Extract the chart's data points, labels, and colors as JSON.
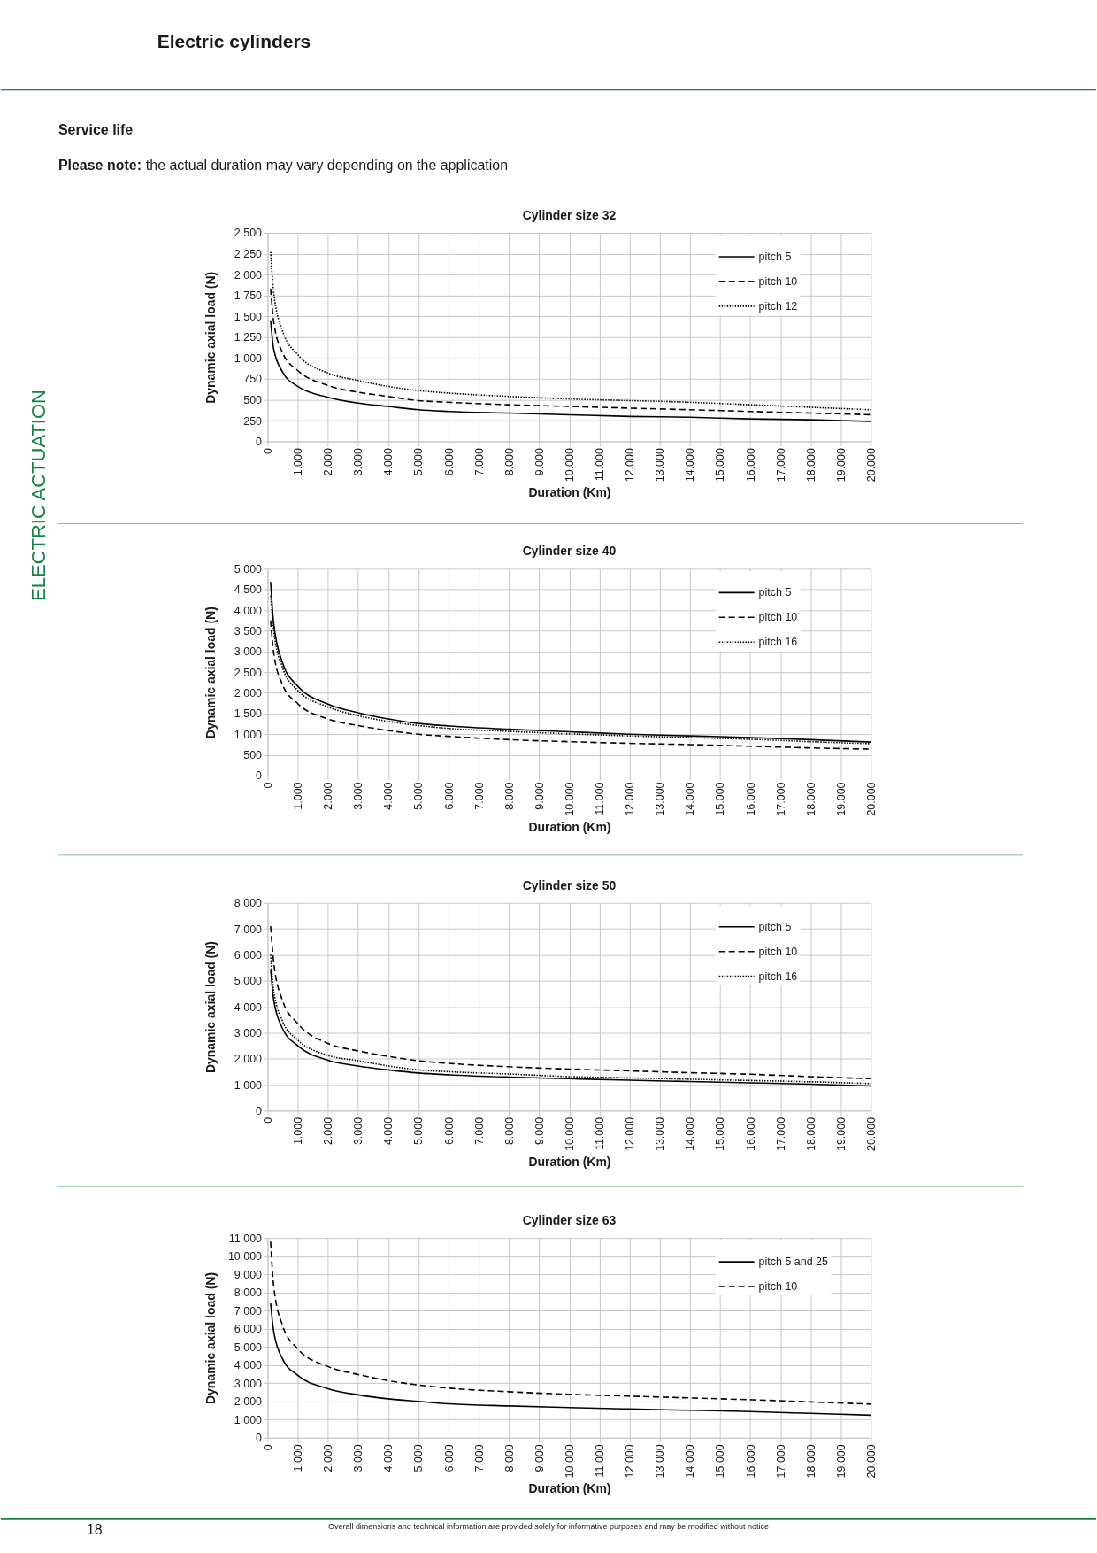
{
  "chart_data": [
    {
      "type": "line",
      "title": "Cylinder size 32",
      "xlabel": "Duration (Km)",
      "ylabel": "Dynamic axial load (N)",
      "annotations": [
        "Electric cylinders",
        "Service life",
        "Please note:",
        "the actual duration may vary depending on the application",
        "ELECTRIC ACTUATION"
      ],
      "x": [
        100,
        200,
        500,
        1000,
        2000,
        3000,
        4000,
        5000,
        6000,
        8000,
        10000,
        12000,
        14000,
        16000,
        18000,
        20000
      ],
      "series": [
        {
          "name": "pitch 5",
          "color": "#000000",
          "line_style": "solid",
          "values": [
            1450,
            1110,
            830,
            660,
            530,
            460,
            420,
            380,
            360,
            340,
            320,
            300,
            290,
            270,
            260,
            240
          ]
        },
        {
          "name": "pitch 10",
          "color": "#000000",
          "line_style": "dashed",
          "values": [
            1830,
            1440,
            1060,
            850,
            670,
            590,
            540,
            490,
            470,
            440,
            420,
            400,
            380,
            360,
            340,
            320
          ]
        },
        {
          "name": "pitch 12",
          "color": "#000000",
          "line_style": "dotted",
          "values": [
            2270,
            1790,
            1320,
            1040,
            820,
            730,
            660,
            610,
            580,
            540,
            510,
            490,
            470,
            440,
            410,
            380
          ]
        }
      ],
      "xlim": [
        0,
        20000
      ],
      "ylim": [
        0,
        2500
      ],
      "xticks": [
        0,
        {
          "value": 1000,
          "label": "1.000"
        },
        {
          "value": 2000,
          "label": "2.000"
        },
        {
          "value": 3000,
          "label": "3.000"
        },
        {
          "value": 4000,
          "label": "4.000"
        },
        {
          "value": 5000,
          "label": "5.000"
        },
        {
          "value": 6000,
          "label": "6.000"
        },
        {
          "value": 7000,
          "label": "7.000"
        },
        {
          "value": 8000,
          "label": "8.000"
        },
        {
          "value": 9000,
          "label": "9.000"
        },
        {
          "value": 10000,
          "label": "10.000"
        },
        {
          "value": 11000,
          "label": "11.000"
        },
        {
          "value": 12000,
          "label": "12.000"
        },
        {
          "value": 13000,
          "label": "13.000"
        },
        {
          "value": 14000,
          "label": "14.000"
        },
        {
          "value": 15000,
          "label": "15.000"
        },
        {
          "value": 16000,
          "label": "16.000"
        },
        {
          "value": 17000,
          "label": "17.000"
        },
        {
          "value": 18000,
          "label": "18.000"
        },
        {
          "value": 19000,
          "label": "19.000"
        },
        {
          "value": 20000,
          "label": "20.000"
        }
      ],
      "yticks": [
        0,
        250,
        500,
        750,
        {
          "value": 1000,
          "label": "1.000"
        },
        {
          "value": 1250,
          "label": "1.250"
        },
        {
          "value": 1500,
          "label": "1.500"
        },
        {
          "value": 1750,
          "label": "1.750"
        },
        {
          "value": 2000,
          "label": "2.000"
        },
        {
          "value": 2250,
          "label": "2.250"
        },
        {
          "value": 2500,
          "label": "2.500"
        }
      ],
      "grid": true,
      "legend": "top right"
    },
    {
      "type": "line",
      "title": "Cylinder size 40",
      "xlabel": "Duration (Km)",
      "ylabel": "Dynamic axial load (N)",
      "x": [
        100,
        200,
        500,
        1000,
        2000,
        3000,
        4000,
        5000,
        6000,
        8000,
        10000,
        12000,
        14000,
        16000,
        18000,
        20000
      ],
      "series": [
        {
          "name": "pitch 5",
          "color": "#000000",
          "line_style": "solid",
          "values": [
            4680,
            3690,
            2720,
            2160,
            1730,
            1520,
            1370,
            1260,
            1200,
            1120,
            1060,
            1000,
            960,
            920,
            870,
            810
          ]
        },
        {
          "name": "pitch 10",
          "color": "#000000",
          "line_style": "dashed",
          "values": [
            3750,
            2980,
            2190,
            1740,
            1370,
            1210,
            1090,
            1000,
            950,
            870,
            820,
            780,
            750,
            710,
            670,
            640
          ]
        },
        {
          "name": "pitch 16",
          "color": "#000000",
          "line_style": "dotted",
          "values": [
            4350,
            3530,
            2600,
            2060,
            1660,
            1450,
            1310,
            1210,
            1140,
            1070,
            1010,
            960,
            920,
            880,
            820,
            770
          ]
        }
      ],
      "xlim": [
        0,
        20000
      ],
      "ylim": [
        0,
        5000
      ],
      "xticks": [
        0,
        {
          "value": 1000,
          "label": "1.000"
        },
        {
          "value": 2000,
          "label": "2.000"
        },
        {
          "value": 3000,
          "label": "3.000"
        },
        {
          "value": 4000,
          "label": "4.000"
        },
        {
          "value": 5000,
          "label": "5.000"
        },
        {
          "value": 6000,
          "label": "6.000"
        },
        {
          "value": 7000,
          "label": "7.000"
        },
        {
          "value": 8000,
          "label": "8.000"
        },
        {
          "value": 9000,
          "label": "9.000"
        },
        {
          "value": 10000,
          "label": "10.000"
        },
        {
          "value": 11000,
          "label": "11.000"
        },
        {
          "value": 12000,
          "label": "12.000"
        },
        {
          "value": 13000,
          "label": "13.000"
        },
        {
          "value": 14000,
          "label": "14.000"
        },
        {
          "value": 15000,
          "label": "15.000"
        },
        {
          "value": 16000,
          "label": "16.000"
        },
        {
          "value": 17000,
          "label": "17.000"
        },
        {
          "value": 18000,
          "label": "18.000"
        },
        {
          "value": 19000,
          "label": "19.000"
        },
        {
          "value": 20000,
          "label": "20.000"
        }
      ],
      "yticks": [
        0,
        500,
        {
          "value": 1000,
          "label": "1.000"
        },
        {
          "value": 1500,
          "label": "1.500"
        },
        {
          "value": 2000,
          "label": "2.000"
        },
        {
          "value": 2500,
          "label": "2.500"
        },
        {
          "value": 3000,
          "label": "3.000"
        },
        {
          "value": 3500,
          "label": "3.500"
        },
        {
          "value": 4000,
          "label": "4.000"
        },
        {
          "value": 4500,
          "label": "4.500"
        },
        {
          "value": 5000,
          "label": "5.000"
        }
      ],
      "grid": true,
      "legend": "top right"
    },
    {
      "type": "line",
      "title": "Cylinder size 50",
      "xlabel": "Duration (Km)",
      "ylabel": "Dynamic axial load (N)",
      "x": [
        100,
        200,
        500,
        1000,
        2000,
        3000,
        4000,
        5000,
        6000,
        8000,
        10000,
        12000,
        14000,
        16000,
        18000,
        20000
      ],
      "series": [
        {
          "name": "pitch 5",
          "color": "#000000",
          "line_style": "solid",
          "values": [
            5450,
            4280,
            3150,
            2500,
            1940,
            1720,
            1570,
            1450,
            1380,
            1290,
            1230,
            1170,
            1120,
            1070,
            1020,
            950
          ]
        },
        {
          "name": "pitch 10",
          "color": "#000000",
          "line_style": "dashed",
          "values": [
            7100,
            5730,
            4220,
            3350,
            2590,
            2300,
            2090,
            1920,
            1820,
            1690,
            1600,
            1530,
            1460,
            1400,
            1310,
            1230
          ]
        },
        {
          "name": "pitch 16",
          "color": "#000000",
          "line_style": "dotted",
          "values": [
            6000,
            4650,
            3430,
            2720,
            2130,
            1920,
            1720,
            1570,
            1500,
            1410,
            1310,
            1260,
            1210,
            1160,
            1110,
            1040
          ]
        }
      ],
      "xlim": [
        0,
        20000
      ],
      "ylim": [
        0,
        8000
      ],
      "xticks": [
        0,
        {
          "value": 1000,
          "label": "1.000"
        },
        {
          "value": 2000,
          "label": "2.000"
        },
        {
          "value": 3000,
          "label": "3.000"
        },
        {
          "value": 4000,
          "label": "4.000"
        },
        {
          "value": 5000,
          "label": "5.000"
        },
        {
          "value": 6000,
          "label": "6.000"
        },
        {
          "value": 7000,
          "label": "7.000"
        },
        {
          "value": 8000,
          "label": "8.000"
        },
        {
          "value": 9000,
          "label": "9.000"
        },
        {
          "value": 10000,
          "label": "10.000"
        },
        {
          "value": 11000,
          "label": "11.000"
        },
        {
          "value": 12000,
          "label": "12.000"
        },
        {
          "value": 13000,
          "label": "13.000"
        },
        {
          "value": 14000,
          "label": "14.000"
        },
        {
          "value": 15000,
          "label": "15.000"
        },
        {
          "value": 16000,
          "label": "16.000"
        },
        {
          "value": 17000,
          "label": "17.000"
        },
        {
          "value": 18000,
          "label": "18.000"
        },
        {
          "value": 19000,
          "label": "19.000"
        },
        {
          "value": 20000,
          "label": "20.000"
        }
      ],
      "yticks": [
        0,
        {
          "value": 1000,
          "label": "1.000"
        },
        {
          "value": 2000,
          "label": "2.000"
        },
        {
          "value": 3000,
          "label": "3.000"
        },
        {
          "value": 4000,
          "label": "4.000"
        },
        {
          "value": 5000,
          "label": "5.000"
        },
        {
          "value": 6000,
          "label": "6.000"
        },
        {
          "value": 7000,
          "label": "7.000"
        },
        {
          "value": 8000,
          "label": "8.000"
        }
      ],
      "grid": true,
      "legend": "top right"
    },
    {
      "type": "line",
      "title": "Cylinder size 63",
      "xlabel": "Duration (Km)",
      "ylabel": "Dynamic axial load (N)",
      "annotations": [
        "18",
        "Overall dimensions and technical information are provided solely for informative purposes and may be modified without notice"
      ],
      "x": [
        100,
        200,
        500,
        1000,
        2000,
        3000,
        4000,
        5000,
        6000,
        8000,
        10000,
        12000,
        14000,
        16000,
        18000,
        20000
      ],
      "series": [
        {
          "name": "pitch 5 and 25",
          "color": "#000000",
          "line_style": "solid",
          "values": [
            7400,
            5870,
            4320,
            3430,
            2700,
            2360,
            2140,
            2000,
            1870,
            1750,
            1660,
            1580,
            1510,
            1440,
            1340,
            1240
          ]
        },
        {
          "name": "pitch 10",
          "color": "#000000",
          "line_style": "dashed",
          "values": [
            10800,
            8370,
            6160,
            4890,
            3920,
            3480,
            3140,
            2900,
            2730,
            2530,
            2390,
            2290,
            2190,
            2090,
            1970,
            1850
          ]
        }
      ],
      "xlim": [
        0,
        20000
      ],
      "ylim": [
        0,
        11000
      ],
      "xticks": [
        0,
        {
          "value": 1000,
          "label": "1.000"
        },
        {
          "value": 2000,
          "label": "2.000"
        },
        {
          "value": 3000,
          "label": "3.000"
        },
        {
          "value": 4000,
          "label": "4.000"
        },
        {
          "value": 5000,
          "label": "5.000"
        },
        {
          "value": 6000,
          "label": "6.000"
        },
        {
          "value": 7000,
          "label": "7.000"
        },
        {
          "value": 8000,
          "label": "8.000"
        },
        {
          "value": 9000,
          "label": "9.000"
        },
        {
          "value": 10000,
          "label": "10.000"
        },
        {
          "value": 11000,
          "label": "11.000"
        },
        {
          "value": 12000,
          "label": "12.000"
        },
        {
          "value": 13000,
          "label": "13.000"
        },
        {
          "value": 14000,
          "label": "14.000"
        },
        {
          "value": 15000,
          "label": "15.000"
        },
        {
          "value": 16000,
          "label": "16.000"
        },
        {
          "value": 17000,
          "label": "17.000"
        },
        {
          "value": 18000,
          "label": "18.000"
        },
        {
          "value": 19000,
          "label": "19.000"
        },
        {
          "value": 20000,
          "label": "20.000"
        }
      ],
      "yticks": [
        0,
        {
          "value": 1000,
          "label": "1.000"
        },
        {
          "value": 2000,
          "label": "2.000"
        },
        {
          "value": 3000,
          "label": "3.000"
        },
        {
          "value": 4000,
          "label": "4.000"
        },
        {
          "value": 5000,
          "label": "5.000"
        },
        {
          "value": 6000,
          "label": "6.000"
        },
        {
          "value": 7000,
          "label": "7.000"
        },
        {
          "value": 8000,
          "label": "8.000"
        },
        {
          "value": 9000,
          "label": "9.000"
        },
        {
          "value": 10000,
          "label": "10.000"
        },
        {
          "value": 11000,
          "label": "11.000"
        }
      ],
      "grid": true,
      "legend": "top right"
    }
  ]
}
